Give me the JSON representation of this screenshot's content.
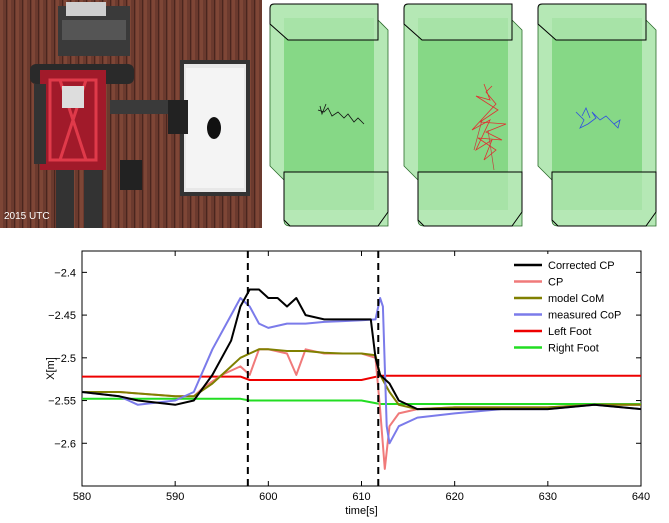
{
  "photo": {
    "caption": "2015 UTC"
  },
  "chart_data": {
    "type": "line",
    "xlabel": "time[s]",
    "ylabel": "X[m]",
    "xlim": [
      580,
      640
    ],
    "ylim": [
      -2.65,
      -2.375
    ],
    "xticks": [
      580,
      590,
      600,
      610,
      620,
      630,
      640
    ],
    "yticks": [
      -2.4,
      -2.45,
      -2.5,
      -2.55,
      -2.6
    ],
    "ytick_labels": [
      "−2.4",
      "−2.45",
      "−2.5",
      "−2.55",
      "−2.6"
    ],
    "vlines": [
      597.8,
      611.8
    ],
    "legend_position": "top-right",
    "grid": false,
    "series": [
      {
        "name": "Corrected CP",
        "color": "#000000",
        "x": [
          580,
          584,
          586,
          590,
          592,
          594,
          596,
          597,
          598,
          599,
          600,
          601,
          602,
          603,
          604,
          606,
          608,
          610,
          611,
          611.5,
          612,
          613,
          614,
          616,
          620,
          625,
          630,
          635,
          640
        ],
        "y": [
          -2.54,
          -2.545,
          -2.55,
          -2.555,
          -2.55,
          -2.52,
          -2.48,
          -2.44,
          -2.42,
          -2.42,
          -2.43,
          -2.43,
          -2.44,
          -2.43,
          -2.45,
          -2.455,
          -2.455,
          -2.455,
          -2.455,
          -2.5,
          -2.52,
          -2.53,
          -2.55,
          -2.56,
          -2.56,
          -2.56,
          -2.56,
          -2.555,
          -2.56
        ]
      },
      {
        "name": "CP",
        "color": "#f07a7a",
        "x": [
          580,
          584,
          590,
          592,
          593,
          595,
          597,
          598,
          599,
          600,
          602,
          603,
          604,
          606,
          608,
          610,
          611.5,
          612,
          612.5,
          613,
          614,
          616,
          620,
          625,
          630,
          635,
          640
        ],
        "y": [
          -2.54,
          -2.54,
          -2.545,
          -2.545,
          -2.535,
          -2.52,
          -2.51,
          -2.52,
          -2.49,
          -2.49,
          -2.495,
          -2.52,
          -2.49,
          -2.495,
          -2.495,
          -2.495,
          -2.5,
          -2.56,
          -2.63,
          -2.58,
          -2.565,
          -2.56,
          -2.558,
          -2.558,
          -2.558,
          -2.555,
          -2.555
        ]
      },
      {
        "name": "model CoM",
        "color": "#808000",
        "x": [
          580,
          584,
          590,
          592,
          594,
          596,
          597,
          598,
          599,
          600,
          602,
          604,
          606,
          608,
          610,
          611.5,
          612,
          613,
          614,
          616,
          620,
          625,
          630,
          635,
          640
        ],
        "y": [
          -2.54,
          -2.54,
          -2.545,
          -2.545,
          -2.53,
          -2.51,
          -2.5,
          -2.495,
          -2.49,
          -2.49,
          -2.492,
          -2.492,
          -2.494,
          -2.495,
          -2.495,
          -2.497,
          -2.52,
          -2.54,
          -2.555,
          -2.56,
          -2.558,
          -2.558,
          -2.558,
          -2.555,
          -2.555
        ]
      },
      {
        "name": "measured CoP",
        "color": "#7b7bea",
        "x": [
          580,
          584,
          586,
          590,
          592,
          594,
          596,
          597,
          598,
          599,
          600,
          602,
          604,
          606,
          608,
          610,
          611.5,
          612,
          612.3,
          612.7,
          613,
          614,
          616,
          620,
          625,
          630,
          635,
          640
        ],
        "y": [
          -2.54,
          -2.545,
          -2.555,
          -2.55,
          -2.54,
          -2.49,
          -2.45,
          -2.43,
          -2.44,
          -2.46,
          -2.465,
          -2.46,
          -2.46,
          -2.458,
          -2.457,
          -2.456,
          -2.455,
          -2.43,
          -2.44,
          -2.58,
          -2.6,
          -2.58,
          -2.57,
          -2.565,
          -2.56,
          -2.56,
          -2.555,
          -2.56
        ]
      },
      {
        "name": "Left Foot",
        "color": "#ee0000",
        "x": [
          580,
          590,
          595,
          597,
          598,
          600,
          610,
          612,
          620,
          630,
          640
        ],
        "y": [
          -2.522,
          -2.522,
          -2.522,
          -2.522,
          -2.526,
          -2.526,
          -2.526,
          -2.521,
          -2.521,
          -2.521,
          -2.521
        ]
      },
      {
        "name": "Right Foot",
        "color": "#22dd22",
        "x": [
          580,
          590,
          595,
          597,
          598,
          600,
          610,
          612,
          620,
          630,
          640
        ],
        "y": [
          -2.548,
          -2.548,
          -2.548,
          -2.548,
          -2.55,
          -2.55,
          -2.55,
          -2.554,
          -2.554,
          -2.554,
          -2.554
        ]
      }
    ]
  }
}
